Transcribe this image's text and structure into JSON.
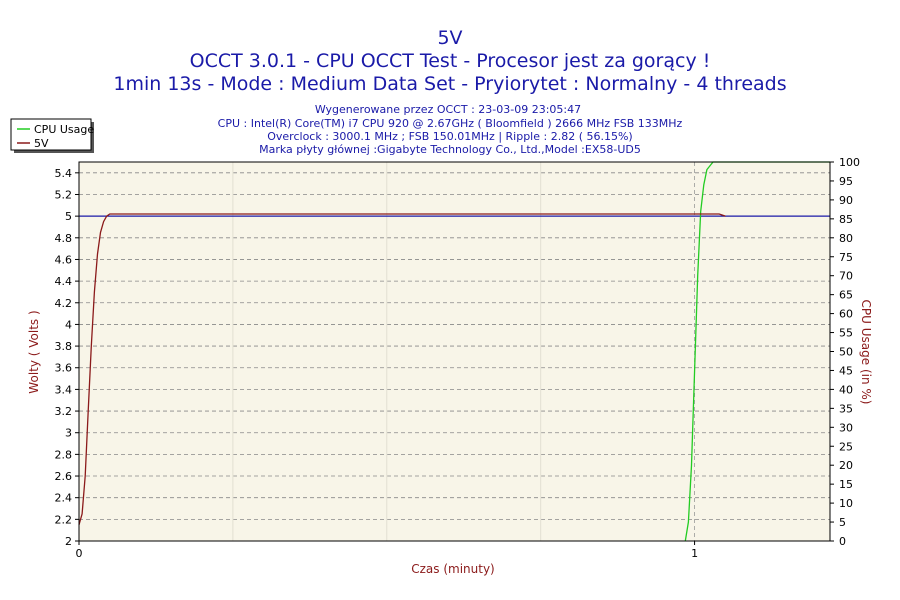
{
  "titles": [
    "5V",
    "OCCT 3.0.1 - CPU OCCT Test - Procesor jest za gorący !",
    "1min 13s - Mode : Medium Data Set - Pryiorytet : Normalny - 4 threads"
  ],
  "info": [
    "Wygenerowane przez OCCT : 23-03-09 23:05:47",
    "CPU : Intel(R) Core(TM) i7 CPU 920 @ 2.67GHz ( Bloomfield ) 2666 MHz FSB 133MHz",
    "Overclock : 3000.1 MHz ; FSB 150.01MHz | Ripple : 2.82 ( 56.15%)",
    "Marka płyty głównej :Gigabyte Technology Co., Ltd.,Model :EX58-UD5"
  ],
  "chart_data": {
    "type": "line",
    "xlabel": "Czas (minuty)",
    "ylabel_left": "Wolty ( Volts )",
    "ylabel_right": "CPU Usage (in %)",
    "xlim": [
      0,
      1.22
    ],
    "ylim_left": [
      2,
      5.5
    ],
    "ylim_right": [
      0,
      100
    ],
    "x_ticks": [
      0,
      1
    ],
    "y_ticks_left": [
      2,
      2.2,
      2.4,
      2.6,
      2.8,
      3,
      3.2,
      3.4,
      3.6,
      3.8,
      4,
      4.2,
      4.4,
      4.6,
      4.8,
      5,
      5.2,
      5.4
    ],
    "y_ticks_right": [
      0,
      5,
      10,
      15,
      20,
      25,
      30,
      35,
      40,
      45,
      50,
      55,
      60,
      65,
      70,
      75,
      80,
      85,
      90,
      95,
      100
    ],
    "legend": {
      "placement": "top-left",
      "entries": [
        "CPU Usage",
        "5V"
      ]
    },
    "reference_line": {
      "axis": "left",
      "value": 5.0,
      "color": "#1a1aa8"
    },
    "series": [
      {
        "name": "CPU Usage",
        "axis": "right",
        "color": "#22cc22",
        "x": [
          0.985,
          0.99,
          0.995,
          1.0,
          1.005,
          1.01,
          1.015,
          1.02,
          1.03,
          1.04,
          1.05,
          1.1,
          1.15,
          1.22
        ],
        "values": [
          0,
          5,
          20,
          45,
          70,
          87,
          94,
          98,
          100,
          100,
          100,
          100,
          100,
          100
        ]
      },
      {
        "name": "5V",
        "axis": "left",
        "color": "#8b1a1a",
        "x": [
          0.0,
          0.005,
          0.01,
          0.015,
          0.02,
          0.025,
          0.03,
          0.035,
          0.04,
          0.045,
          0.05,
          0.1,
          0.5,
          0.95,
          1.0,
          1.04,
          1.05
        ],
        "values": [
          2.15,
          2.25,
          2.6,
          3.2,
          3.8,
          4.3,
          4.65,
          4.85,
          4.95,
          5.0,
          5.02,
          5.02,
          5.02,
          5.02,
          5.02,
          5.02,
          5.0
        ]
      }
    ],
    "colors": {
      "plot_background": "#f8f5e8",
      "grid": "#888888",
      "vertical_grid": "#999999"
    }
  }
}
